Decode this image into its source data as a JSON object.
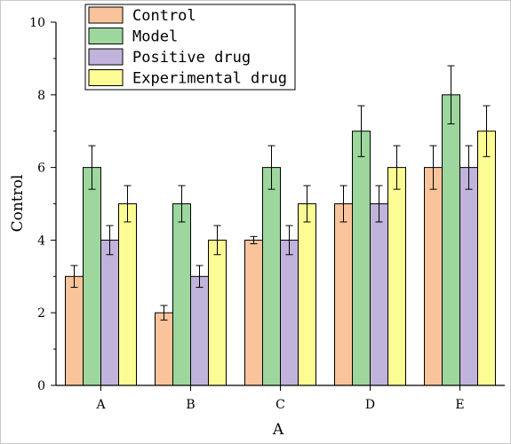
{
  "chart_data": {
    "type": "bar",
    "xlabel": "A",
    "ylabel": "Control",
    "ylim": [
      0,
      10
    ],
    "yticks": [
      "0",
      "2",
      "4",
      "6",
      "8",
      "10"
    ],
    "categories": [
      "A",
      "B",
      "C",
      "D",
      "E"
    ],
    "error_bars": true,
    "legend_position": "top-left",
    "series": [
      {
        "name": "Control",
        "color": "#f9c49b",
        "values": [
          3,
          2,
          4,
          5,
          6
        ],
        "errors": [
          0.3,
          0.2,
          0.1,
          0.5,
          0.6
        ]
      },
      {
        "name": "Model",
        "color": "#9dd79d",
        "values": [
          6,
          5,
          6,
          7,
          8
        ],
        "errors": [
          0.6,
          0.5,
          0.6,
          0.7,
          0.8
        ]
      },
      {
        "name": "Positive drug",
        "color": "#c0b3dc",
        "values": [
          4,
          3,
          4,
          5,
          6
        ],
        "errors": [
          0.4,
          0.3,
          0.4,
          0.5,
          0.6
        ]
      },
      {
        "name": "Experimental drug",
        "color": "#fcfc94",
        "values": [
          5,
          4,
          5,
          6,
          7
        ],
        "errors": [
          0.5,
          0.4,
          0.5,
          0.6,
          0.7
        ]
      }
    ]
  }
}
